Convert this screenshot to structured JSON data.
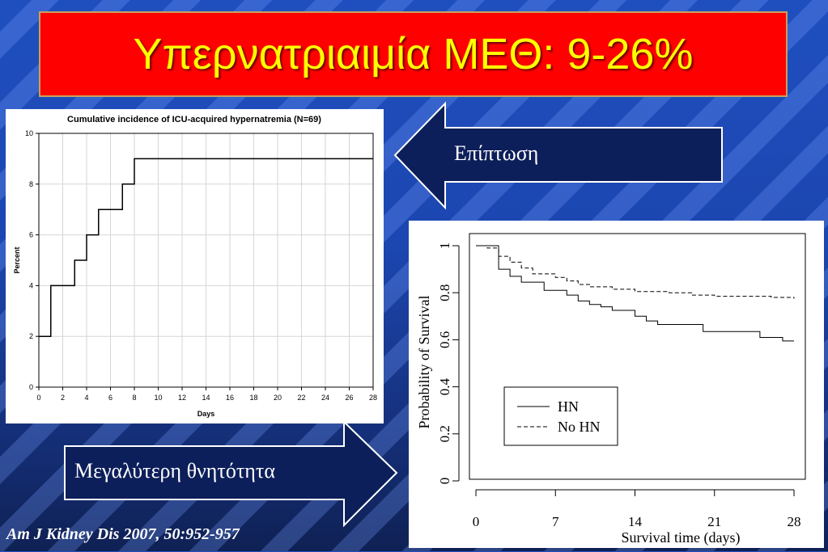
{
  "slide": {
    "title": "Υπερνατριαιμία ΜΕΘ: 9-26%",
    "arrow_left_label": "Επίπτωση",
    "arrow_right_label": "Μεγαλύτερη θνητότητα",
    "citation": "Am J Kidney Dis 2007, 50:952-957"
  },
  "chart_data": [
    {
      "type": "line",
      "title": "Cumulative incidence of ICU-acquired hypernatremia (N=69)",
      "xlabel": "Days",
      "ylabel": "Percent",
      "xlim": [
        0,
        28
      ],
      "ylim": [
        0,
        10
      ],
      "xticks": [
        0,
        2,
        4,
        6,
        8,
        10,
        12,
        14,
        16,
        18,
        20,
        22,
        24,
        26,
        28
      ],
      "yticks": [
        0,
        2,
        4,
        6,
        8,
        10
      ],
      "grid": true,
      "step": true,
      "series": [
        {
          "x": [
            0,
            1,
            1,
            3,
            3,
            4,
            4,
            5,
            5,
            7,
            7,
            8,
            8,
            28
          ],
          "y": [
            2,
            2,
            4,
            4,
            5,
            5,
            6,
            6,
            7,
            7,
            8,
            8,
            9,
            9
          ]
        }
      ]
    },
    {
      "type": "line",
      "title": "",
      "xlabel": "Survival time (days)",
      "ylabel": "Probability of Survival",
      "xlim": [
        0,
        28
      ],
      "ylim": [
        0,
        1
      ],
      "xticks": [
        0,
        7,
        14,
        21,
        28
      ],
      "yticks": [
        0,
        0.2,
        0.4,
        0.6,
        0.8,
        1
      ],
      "ytick_labels": [
        "0",
        "0.2",
        "0.4",
        "0.6",
        "0.8",
        "1"
      ],
      "grid": false,
      "step": true,
      "legend": {
        "placement": "bottom-left"
      },
      "series": [
        {
          "name": "HN",
          "style": "solid",
          "x": [
            0,
            2,
            3,
            4,
            6,
            8,
            9,
            10,
            11,
            12,
            14,
            15,
            16,
            17,
            20,
            25,
            27,
            28
          ],
          "y": [
            1.0,
            0.9,
            0.87,
            0.845,
            0.81,
            0.79,
            0.765,
            0.75,
            0.74,
            0.725,
            0.7,
            0.68,
            0.665,
            0.665,
            0.635,
            0.61,
            0.595,
            0.595
          ]
        },
        {
          "name": "No HN",
          "style": "dashed",
          "x": [
            0,
            1,
            2,
            3,
            4,
            5,
            7,
            8,
            9,
            10,
            12,
            14,
            17,
            19,
            21,
            24,
            26,
            28
          ],
          "y": [
            1.0,
            0.99,
            0.955,
            0.93,
            0.905,
            0.88,
            0.865,
            0.85,
            0.835,
            0.825,
            0.815,
            0.805,
            0.8,
            0.79,
            0.785,
            0.785,
            0.78,
            0.775
          ]
        }
      ]
    }
  ]
}
